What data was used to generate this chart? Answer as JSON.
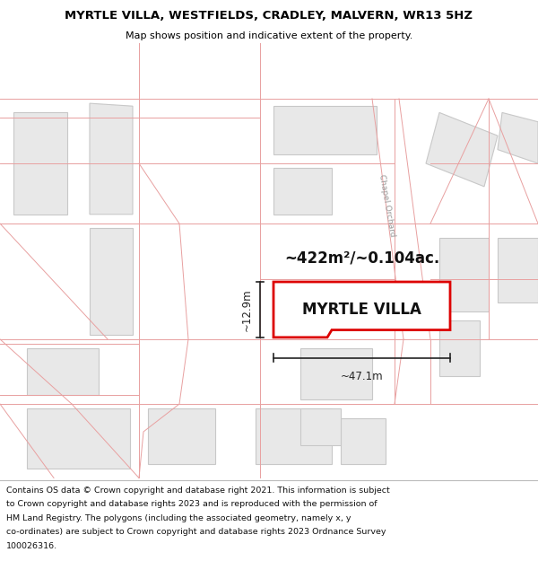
{
  "title_line1": "MYRTLE VILLA, WESTFIELDS, CRADLEY, MALVERN, WR13 5HZ",
  "title_line2": "Map shows position and indicative extent of the property.",
  "property_label": "MYRTLE VILLA",
  "area_label": "~422m²/~0.104ac.",
  "width_label": "~47.1m",
  "height_label": "~12.9m",
  "footer_lines": [
    "Contains OS data © Crown copyright and database right 2021. This information is subject",
    "to Crown copyright and database rights 2023 and is reproduced with the permission of",
    "HM Land Registry. The polygons (including the associated geometry, namely x, y",
    "co-ordinates) are subject to Crown copyright and database rights 2023 Ordnance Survey",
    "100026316."
  ],
  "map_bg": "#ffffff",
  "line_color": "#e8a0a0",
  "building_fill": "#e8e8e8",
  "building_edge": "#c8c8c8",
  "property_color": "#dd0000",
  "road_fill": "#e8e8e8",
  "road_edge": "#cccccc",
  "dim_color": "#222222",
  "chapel_text_color": "#999999",
  "white_bg": "#ffffff"
}
